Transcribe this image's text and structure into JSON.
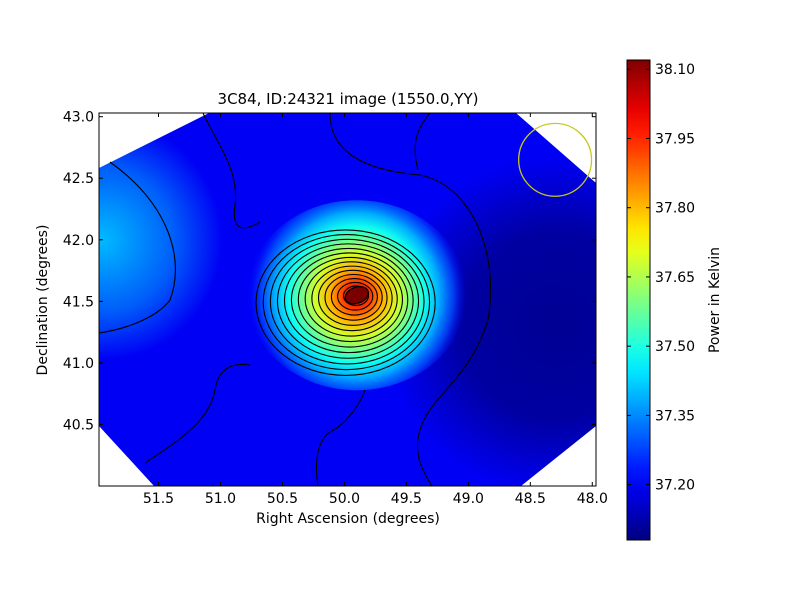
{
  "chart_data": {
    "type": "heatmap",
    "title": "3C84, ID:24321 image (1550.0,YY)",
    "xlabel": "Right Ascension (degrees)",
    "ylabel": "Declination (degrees)",
    "xlim": [
      51.98,
      47.97
    ],
    "ylim": [
      40.0,
      43.03
    ],
    "x_axis_inverted": true,
    "xticks": [
      51.5,
      51.0,
      50.5,
      50.0,
      49.5,
      49.0,
      48.5,
      48.0
    ],
    "xtick_labels": [
      "51.5",
      "51.0",
      "50.5",
      "50.0",
      "49.5",
      "49.0",
      "48.5",
      "48.0"
    ],
    "yticks": [
      40.5,
      41.0,
      41.5,
      42.0,
      42.5,
      43.0
    ],
    "ytick_labels": [
      "40.5",
      "41.0",
      "41.5",
      "42.0",
      "42.5",
      "43.0"
    ],
    "colormap": "jet",
    "colorbar": {
      "label": "Power in Kelvin",
      "range": [
        37.08,
        38.12
      ],
      "ticks": [
        37.2,
        37.35,
        37.5,
        37.65,
        37.8,
        37.95,
        38.1
      ],
      "tick_labels": [
        "37.20",
        "37.35",
        "37.50",
        "37.65",
        "37.80",
        "37.95",
        "38.10"
      ]
    },
    "source_peak": {
      "ra": 49.9,
      "dec": 41.55,
      "value": 38.1
    },
    "background_level": 37.2,
    "min_region": {
      "ra": 48.3,
      "dec": 41.3,
      "value": 37.1
    },
    "secondary_region": {
      "ra": 51.95,
      "dec": 42.0,
      "value": 37.4
    },
    "contour_count": 14,
    "beam_marker": {
      "ra": 48.3,
      "dec": 42.65,
      "radius_deg": 0.3,
      "color": "#c8c820"
    },
    "grid": false,
    "frame_color": "#000000",
    "contour_color": "#000000"
  }
}
